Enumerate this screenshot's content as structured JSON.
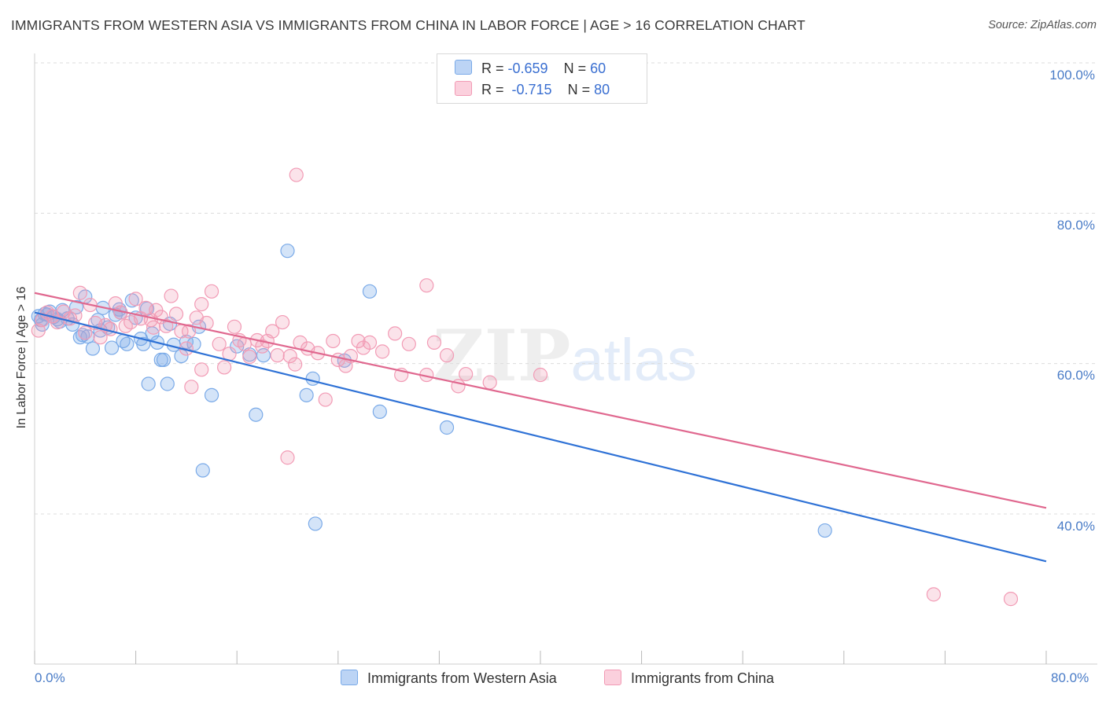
{
  "title": "IMMIGRANTS FROM WESTERN ASIA VS IMMIGRANTS FROM CHINA IN LABOR FORCE | AGE > 16 CORRELATION CHART",
  "source": "Source: ZipAtlas.com",
  "watermark": {
    "zip": "ZIP",
    "atlas": "atlas"
  },
  "legend_stats": [
    {
      "r_label": "R =",
      "r_value": "-0.659",
      "n_label": "N =",
      "n_value": "60",
      "color": "#7aaae8"
    },
    {
      "r_label": "R =",
      "r_value": "-0.715",
      "n_label": "N =",
      "n_value": "80",
      "color": "#f29bb5"
    }
  ],
  "chart_data": {
    "type": "scatter",
    "title": "IMMIGRANTS FROM WESTERN ASIA VS IMMIGRANTS FROM CHINA IN LABOR FORCE | AGE > 16 CORRELATION CHART",
    "xlabel": "",
    "ylabel": "In Labor Force | Age > 16",
    "xlim": [
      0,
      80
    ],
    "ylim": [
      20,
      102
    ],
    "x_tick_labels": [
      "0.0%",
      "80.0%"
    ],
    "y_tick_labels": [
      "100.0%",
      "80.0%",
      "60.0%",
      "40.0%"
    ],
    "y_ticks": [
      100,
      80,
      60,
      40
    ],
    "grid": true,
    "legend_position": "bottom",
    "series": [
      {
        "name": "Immigrants from Western Asia",
        "color": "#7aaae8",
        "line_color": "#2f72d6",
        "trend": {
          "x": [
            0,
            80
          ],
          "y": [
            66.8,
            33.7
          ]
        },
        "points": [
          [
            0.3,
            66.3
          ],
          [
            0.5,
            65.8
          ],
          [
            0.8,
            66.6
          ],
          [
            1.2,
            66.9
          ],
          [
            1.5,
            66.2
          ],
          [
            1.8,
            65.9
          ],
          [
            2.2,
            67.1
          ],
          [
            2.6,
            66.0
          ],
          [
            3.0,
            65.2
          ],
          [
            3.3,
            67.5
          ],
          [
            3.6,
            63.5
          ],
          [
            4.0,
            68.9
          ],
          [
            4.2,
            63.6
          ],
          [
            4.6,
            62.0
          ],
          [
            5.0,
            65.8
          ],
          [
            5.4,
            67.4
          ],
          [
            5.8,
            64.8
          ],
          [
            6.1,
            62.1
          ],
          [
            6.4,
            66.5
          ],
          [
            6.7,
            67.2
          ],
          [
            7.0,
            63.0
          ],
          [
            7.3,
            62.6
          ],
          [
            7.7,
            68.4
          ],
          [
            8.0,
            66.1
          ],
          [
            8.4,
            63.3
          ],
          [
            8.9,
            67.3
          ],
          [
            9.3,
            64.0
          ],
          [
            9.7,
            62.8
          ],
          [
            10.2,
            60.5
          ],
          [
            10.7,
            65.3
          ],
          [
            11.0,
            62.5
          ],
          [
            11.6,
            61.0
          ],
          [
            12.0,
            62.9
          ],
          [
            12.6,
            62.6
          ],
          [
            13.0,
            64.9
          ],
          [
            14.0,
            55.8
          ],
          [
            16.0,
            62.3
          ],
          [
            17.0,
            61.2
          ],
          [
            17.5,
            53.2
          ],
          [
            18.1,
            61.1
          ],
          [
            20.0,
            75.0
          ],
          [
            21.5,
            55.8
          ],
          [
            22.0,
            58.0
          ],
          [
            22.2,
            38.7
          ],
          [
            24.5,
            60.4
          ],
          [
            26.5,
            69.6
          ],
          [
            27.3,
            53.6
          ],
          [
            9.0,
            57.3
          ],
          [
            10.5,
            57.3
          ],
          [
            13.3,
            45.8
          ],
          [
            0.6,
            65.2
          ],
          [
            1.0,
            66.5
          ],
          [
            2.0,
            65.6
          ],
          [
            3.8,
            63.8
          ],
          [
            5.2,
            64.4
          ],
          [
            6.8,
            66.8
          ],
          [
            8.6,
            62.6
          ],
          [
            10.0,
            60.5
          ],
          [
            32.6,
            51.5
          ],
          [
            62.5,
            37.8
          ]
        ]
      },
      {
        "name": "Immigrants from China",
        "color": "#f29bb5",
        "line_color": "#e0688f",
        "trend": {
          "x": [
            0,
            80
          ],
          "y": [
            69.4,
            40.8
          ]
        },
        "points": [
          [
            0.3,
            64.4
          ],
          [
            0.6,
            65.8
          ],
          [
            1.0,
            66.8
          ],
          [
            1.4,
            66.3
          ],
          [
            1.8,
            65.5
          ],
          [
            2.3,
            66.9
          ],
          [
            2.8,
            66.0
          ],
          [
            3.2,
            66.4
          ],
          [
            3.6,
            69.4
          ],
          [
            4.0,
            64.1
          ],
          [
            4.4,
            67.8
          ],
          [
            4.8,
            65.4
          ],
          [
            5.2,
            63.5
          ],
          [
            5.6,
            65.1
          ],
          [
            6.0,
            64.6
          ],
          [
            6.4,
            68.0
          ],
          [
            6.8,
            66.8
          ],
          [
            7.2,
            65.0
          ],
          [
            7.6,
            65.5
          ],
          [
            8.0,
            68.6
          ],
          [
            8.4,
            66.0
          ],
          [
            8.8,
            67.4
          ],
          [
            9.2,
            65.8
          ],
          [
            9.6,
            67.1
          ],
          [
            10.0,
            66.2
          ],
          [
            10.4,
            65.0
          ],
          [
            10.8,
            69.0
          ],
          [
            11.2,
            66.6
          ],
          [
            11.6,
            64.3
          ],
          [
            12.0,
            62.0
          ],
          [
            12.4,
            56.9
          ],
          [
            12.8,
            66.1
          ],
          [
            13.2,
            59.2
          ],
          [
            13.6,
            65.4
          ],
          [
            14.0,
            69.6
          ],
          [
            14.6,
            62.6
          ],
          [
            15.0,
            59.5
          ],
          [
            15.4,
            61.3
          ],
          [
            15.8,
            64.9
          ],
          [
            16.2,
            63.1
          ],
          [
            16.6,
            62.6
          ],
          [
            17.0,
            60.9
          ],
          [
            17.6,
            63.1
          ],
          [
            18.0,
            62.3
          ],
          [
            18.4,
            63.0
          ],
          [
            18.8,
            64.3
          ],
          [
            19.2,
            61.1
          ],
          [
            19.6,
            65.5
          ],
          [
            20.2,
            61.0
          ],
          [
            20.6,
            59.9
          ],
          [
            21.0,
            62.8
          ],
          [
            21.6,
            62.0
          ],
          [
            22.4,
            61.4
          ],
          [
            23.0,
            55.2
          ],
          [
            23.6,
            63.0
          ],
          [
            24.0,
            60.5
          ],
          [
            24.6,
            59.7
          ],
          [
            25.0,
            61.0
          ],
          [
            25.6,
            63.0
          ],
          [
            26.0,
            62.1
          ],
          [
            26.5,
            62.8
          ],
          [
            27.5,
            61.6
          ],
          [
            28.5,
            64.0
          ],
          [
            29.0,
            58.5
          ],
          [
            29.6,
            62.6
          ],
          [
            31.0,
            58.5
          ],
          [
            31.6,
            62.8
          ],
          [
            32.6,
            61.1
          ],
          [
            33.5,
            57.0
          ],
          [
            34.1,
            58.6
          ],
          [
            36.0,
            57.5
          ],
          [
            40.0,
            58.5
          ],
          [
            20.7,
            85.1
          ],
          [
            20.0,
            47.5
          ],
          [
            31.0,
            70.4
          ],
          [
            13.2,
            67.9
          ],
          [
            9.4,
            64.8
          ],
          [
            12.2,
            64.3
          ],
          [
            71.1,
            29.3
          ],
          [
            77.2,
            28.7
          ]
        ]
      }
    ]
  }
}
